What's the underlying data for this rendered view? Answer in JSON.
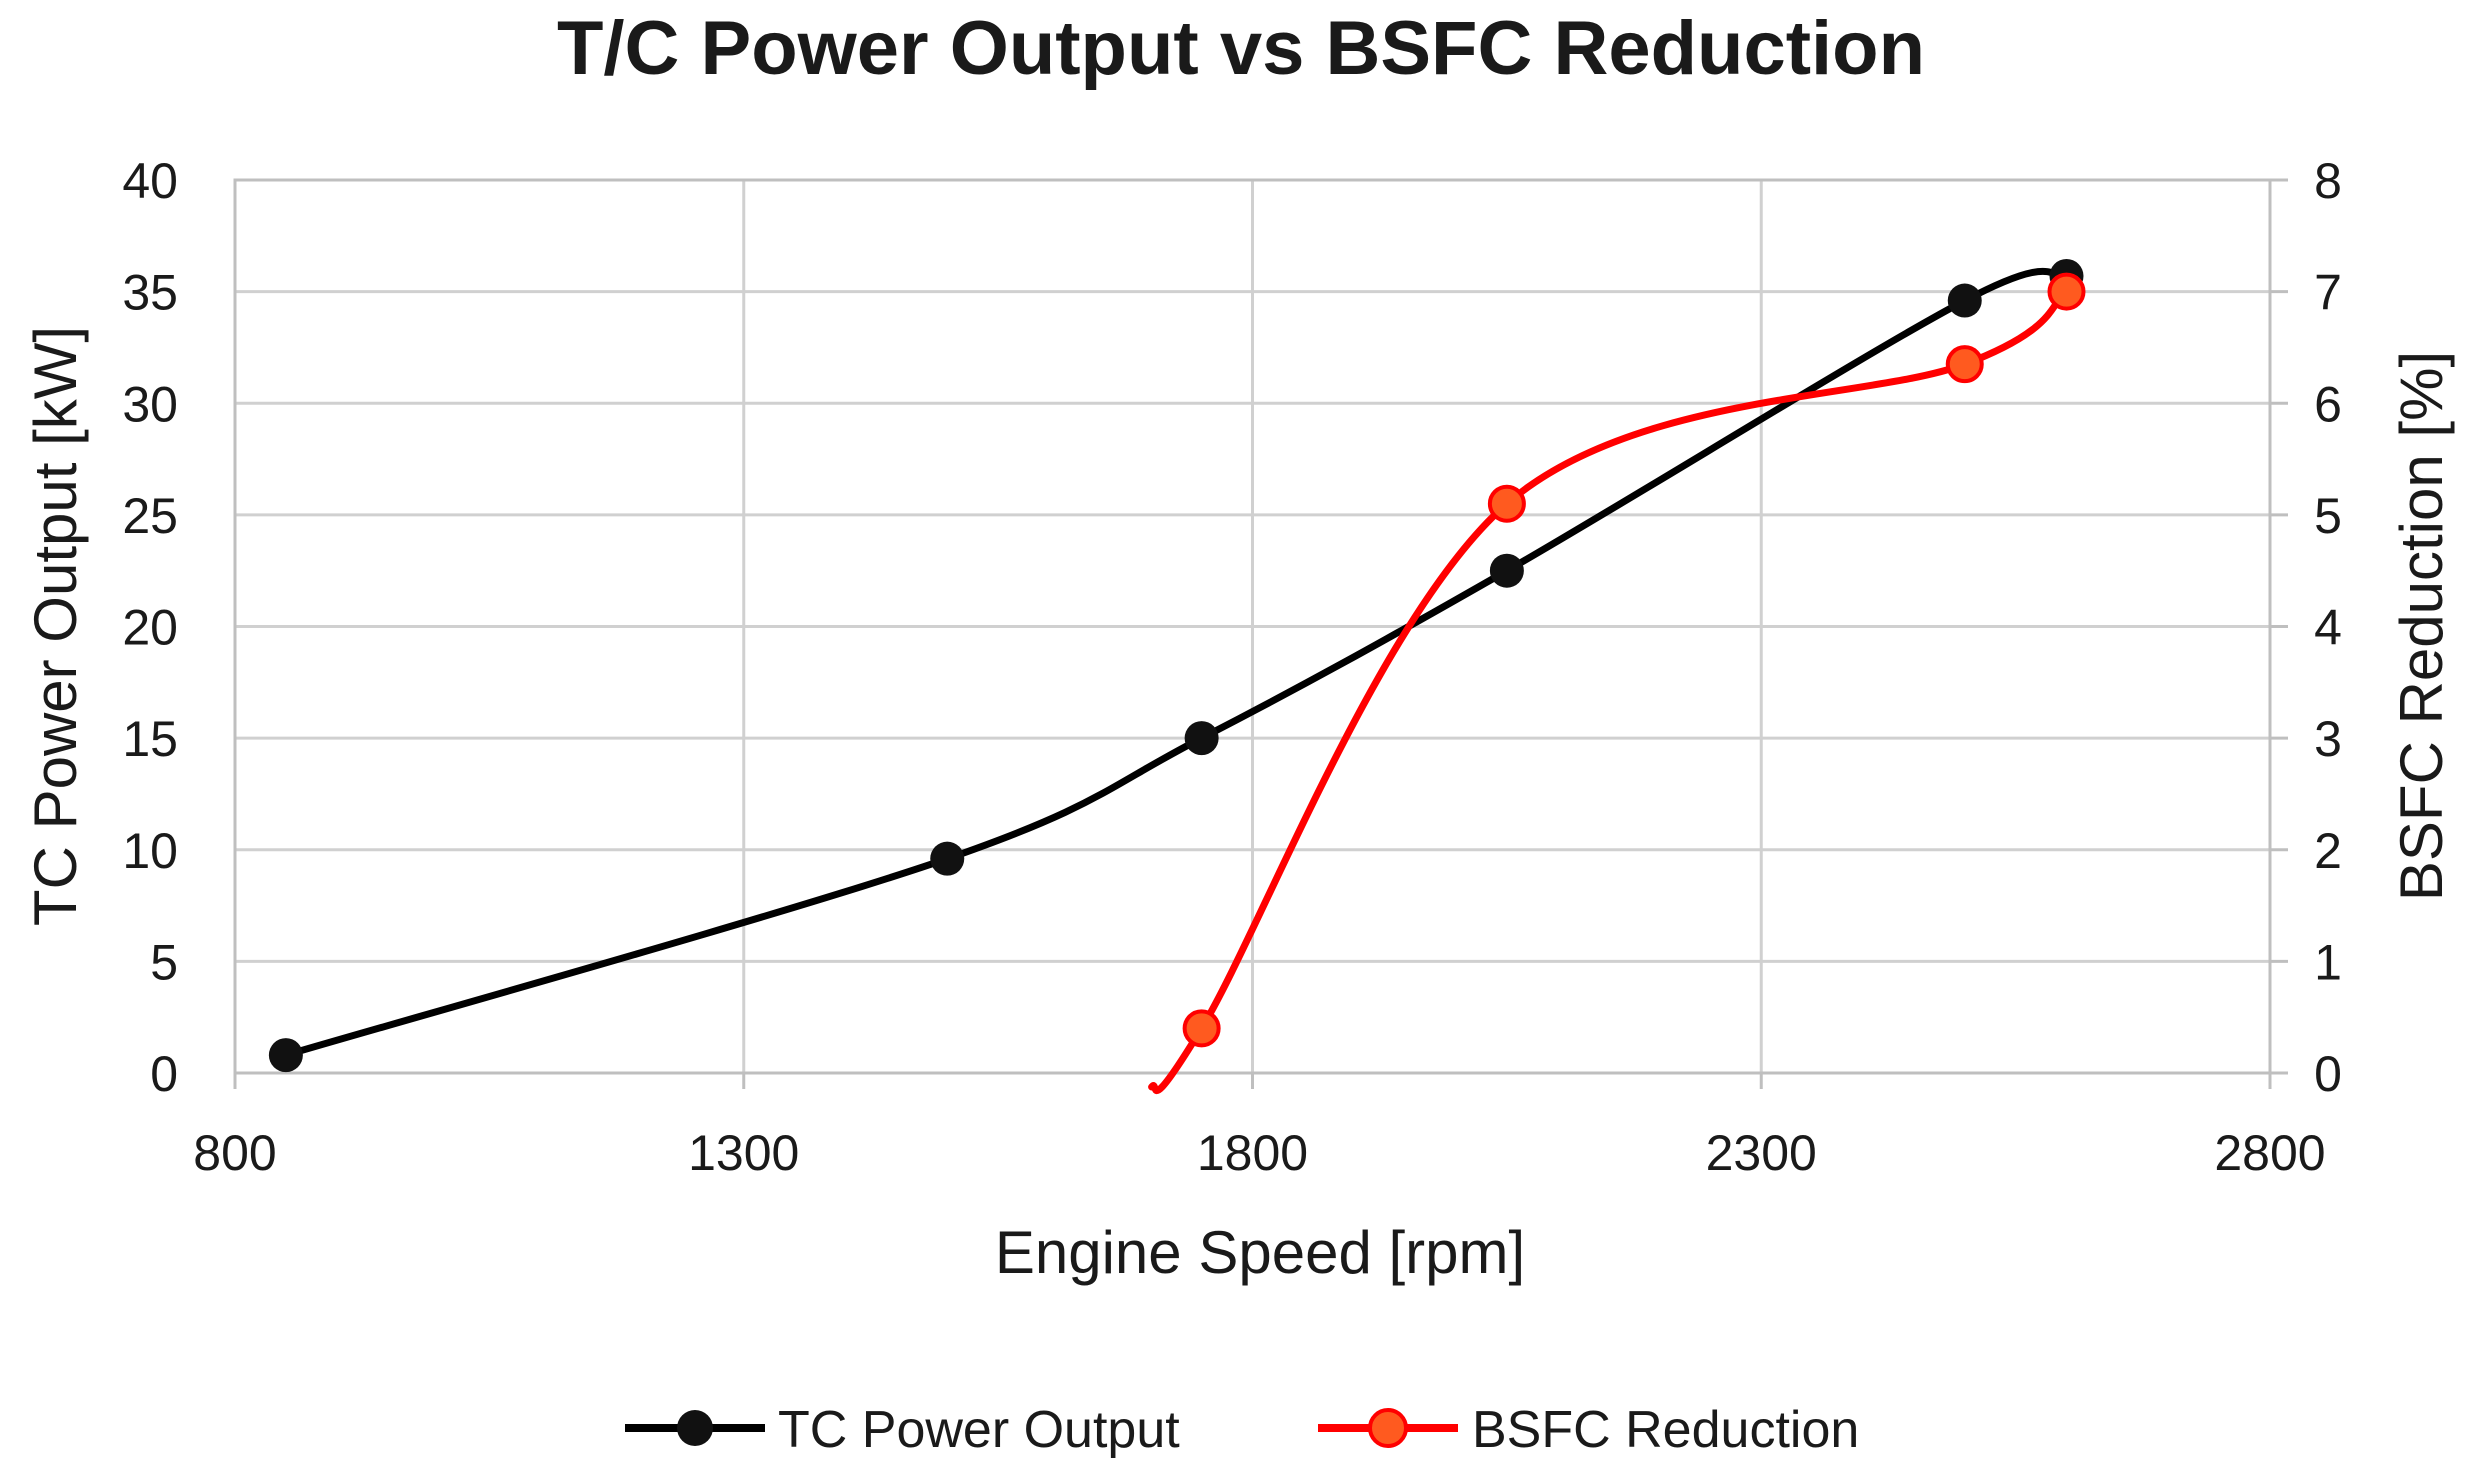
{
  "chart_data": {
    "type": "line",
    "title": "T/C Power Output vs BSFC Reduction",
    "xlabel": "Engine Speed [rpm]",
    "ylabel": "TC Power Output [kW]",
    "y2label": "BSFC Reduction [%]",
    "xlim": [
      800,
      2800
    ],
    "ylim": [
      0,
      40
    ],
    "y2lim": [
      0,
      8
    ],
    "xticks": [
      800,
      1300,
      1800,
      2300,
      2800
    ],
    "yticks": [
      0,
      5,
      10,
      15,
      20,
      25,
      30,
      35,
      40
    ],
    "y2ticks": [
      0,
      1,
      2,
      3,
      4,
      5,
      6,
      7,
      8
    ],
    "grid": true,
    "legend_position": "bottom",
    "series": [
      {
        "name": "TC Power Output",
        "axis": "left",
        "color": "#000000",
        "marker_color": "#111111",
        "x": [
          850,
          1500,
          1750,
          2050,
          2500,
          2600
        ],
        "y": [
          0.8,
          9.6,
          15.0,
          22.5,
          34.6,
          35.7
        ]
      },
      {
        "name": "BSFC Reduction",
        "axis": "right",
        "color": "#ff0000",
        "marker_color": "#ff5a1f",
        "x": [
          1750,
          2050,
          2500,
          2600
        ],
        "y": [
          0.4,
          5.1,
          6.35,
          7.0
        ]
      }
    ]
  }
}
